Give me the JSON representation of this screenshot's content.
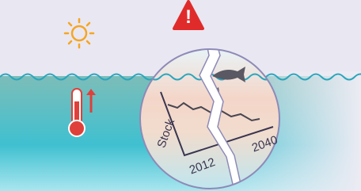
{
  "warning_icon": "!",
  "axis_label": "Stock",
  "x_start": "2012",
  "x_end": "2040"
}
